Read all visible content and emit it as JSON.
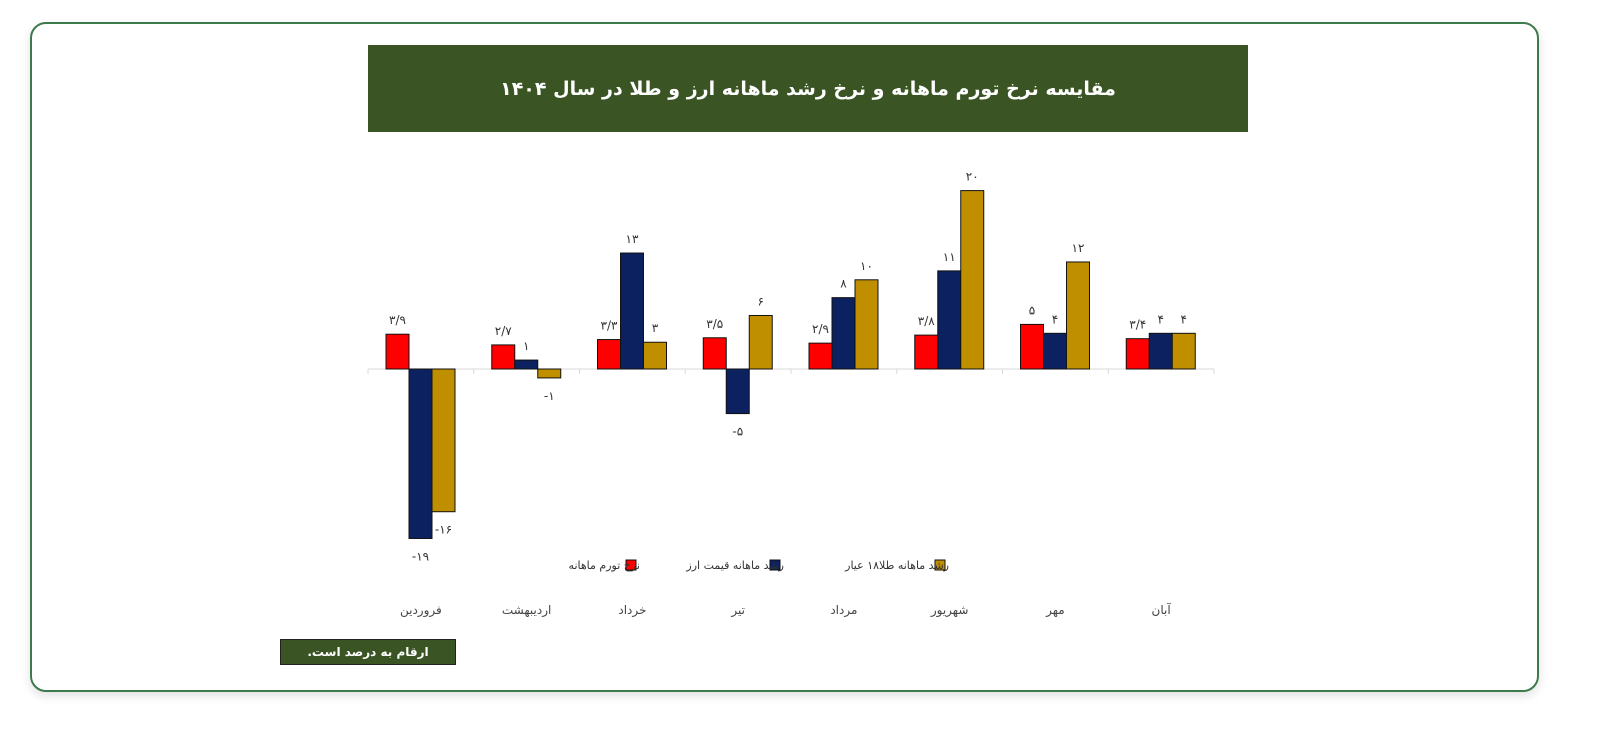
{
  "chart_data": {
    "type": "bar",
    "title": "مقایسه نرخ تورم ماهانه و نرخ رشد ماهانه ارز و طلا در سال ۱۴۰۴",
    "categories": [
      "فروردین",
      "اردیبهشت",
      "خرداد",
      "تیر",
      "مرداد",
      "شهریور",
      "مهر",
      "آبان"
    ],
    "series": [
      {
        "name": "نرخ تورم ماهانه",
        "color": "#ff0000",
        "values": [
          3.9,
          2.7,
          3.3,
          3.5,
          2.9,
          3.8,
          5,
          3.4
        ],
        "labels": [
          "۳/۹",
          "۲/۷",
          "۳/۳",
          "۳/۵",
          "۲/۹",
          "۳/۸",
          "۵",
          "۳/۴"
        ]
      },
      {
        "name": "رشد ماهانه قیمت ارز",
        "color": "#0c2160",
        "values": [
          -19,
          1,
          13,
          -5,
          8,
          11,
          4,
          4
        ],
        "labels": [
          "-۱۹",
          "۱",
          "۱۳",
          "-۵",
          "۸",
          "۱۱",
          "۴",
          "۴"
        ]
      },
      {
        "name": "رشد ماهانه طلا۱۸ عیار",
        "color": "#bf8f00",
        "values": [
          -16,
          -1,
          3,
          6,
          10,
          20,
          12,
          4
        ],
        "labels": [
          "-۱۶",
          "-۱",
          "۳",
          "۶",
          "۱۰",
          "۲۰",
          "۱۲",
          "۴"
        ]
      }
    ],
    "xlabel": "",
    "ylabel": "",
    "grid": false,
    "legend": "bottom"
  },
  "footnote": "ارقام به درصد است."
}
